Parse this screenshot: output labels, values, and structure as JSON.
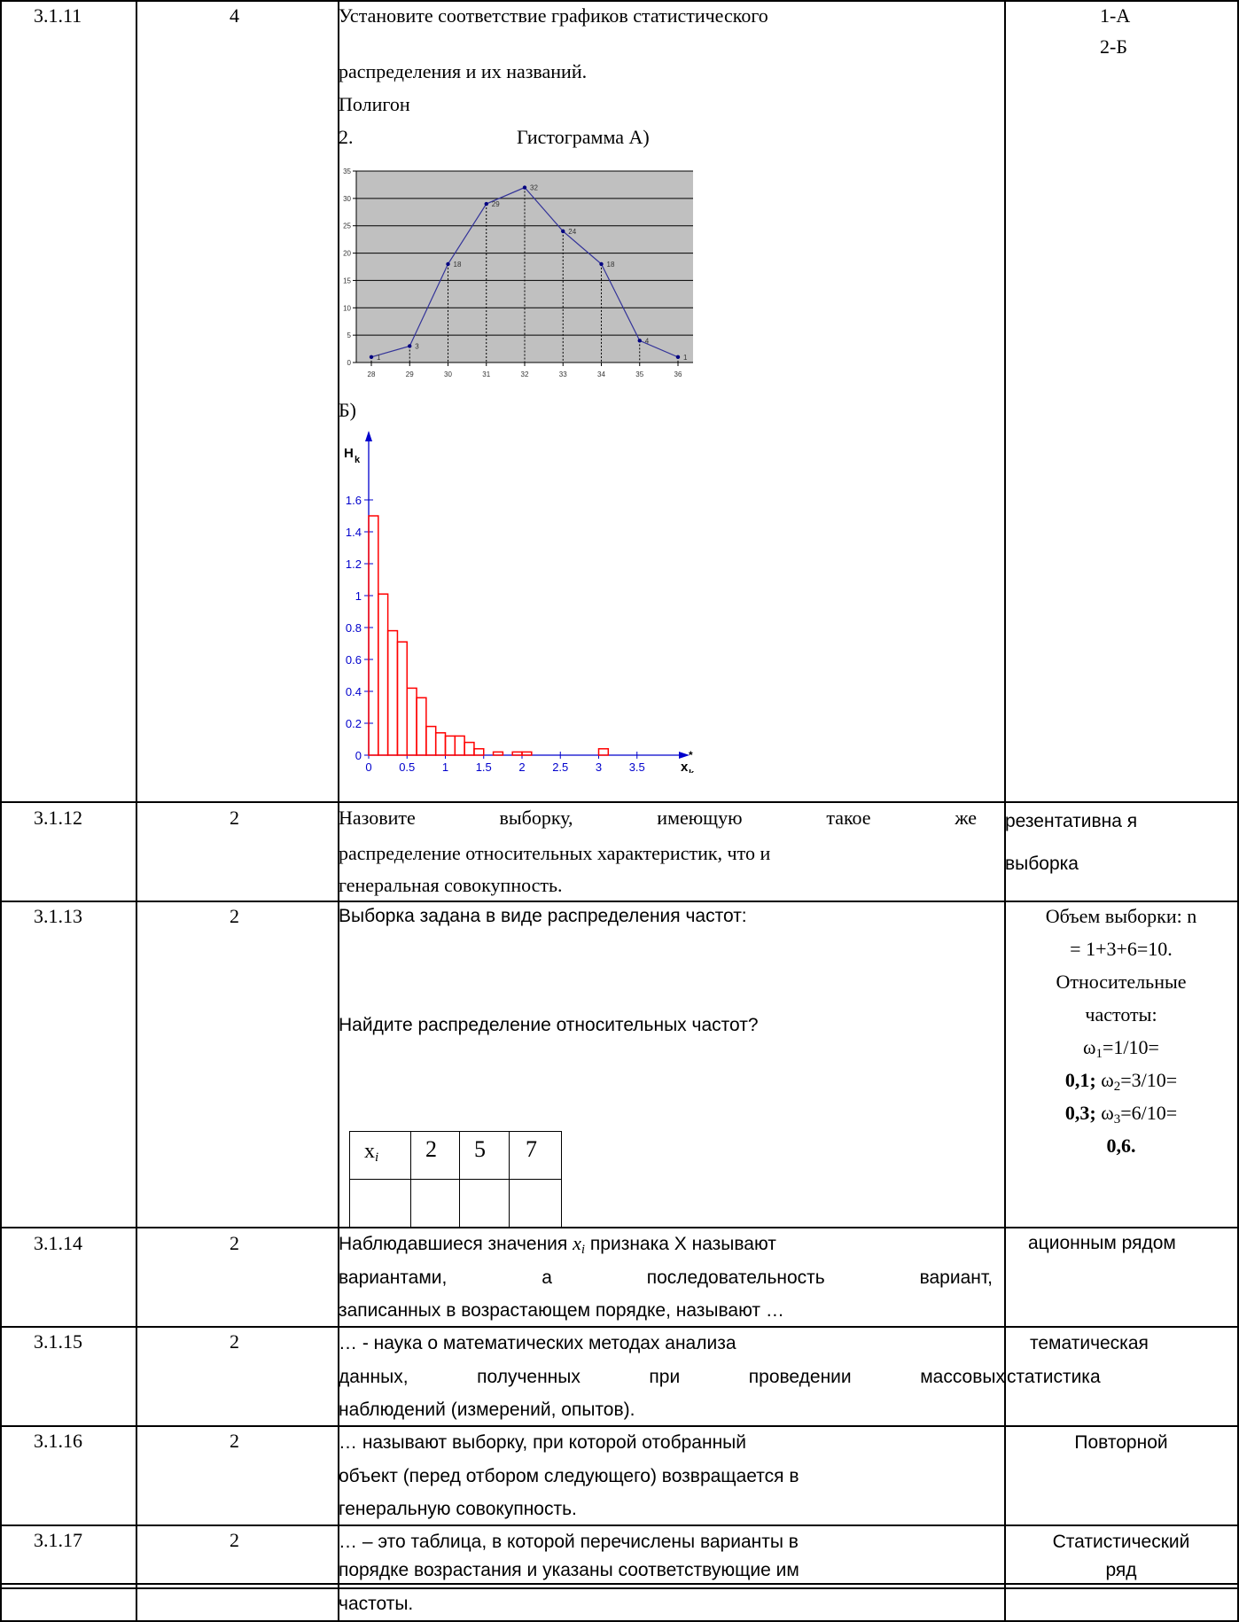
{
  "rows": [
    {
      "num": "3.1.11",
      "points": "4",
      "question": [
        "Установите соответствие графиков статистического",
        "распределения и их названий.",
        "Полигон",
        "2.",
        "Гистограмма А)"
      ],
      "answer": [
        "1-А",
        "2-Б"
      ],
      "chart_b_label": "Б)"
    },
    {
      "num": "3.1.12",
      "points": "2",
      "question": [
        "Назовите выборку, имеющую такое же",
        "распределение относительных характеристик, что и",
        "генеральная совокупность."
      ],
      "answer": [
        "резентативна я",
        "выборка"
      ]
    },
    {
      "num": "3.1.13",
      "points": "2",
      "question": [
        "Выборка задана в виде распределения частот:",
        "Найдите распределение относительных частот?"
      ],
      "freq_table": {
        "header": "x",
        "header_sub": "i",
        "values": [
          "2",
          "5",
          "7"
        ]
      },
      "answer": [
        "Объем выборки: n",
        "= 1+3+6=10.",
        "Относительные",
        "частоты:",
        "ω",
        "1",
        "=1/10=",
        "0,1;",
        "ω",
        "2",
        "=3/10=",
        "0,3;",
        "ω",
        "3",
        "=6/10=",
        "0,6."
      ]
    },
    {
      "num": "3.1.14",
      "points": "2",
      "question": [
        "Наблюдавшиеся значения",
        "x",
        "i",
        "признака X называют",
        "вариантами, а последовательность вариант,",
        "записанных в возрастающем порядке, называют …"
      ],
      "answer": [
        "ационным рядом"
      ]
    },
    {
      "num": "3.1.15",
      "points": "2",
      "question": [
        "… - наука о математических методах анализа",
        "данных, полученных при проведении массовых",
        "наблюдений (измерений, опытов)."
      ],
      "answer": [
        "тематическая",
        "статистика"
      ]
    },
    {
      "num": "3.1.16",
      "points": "2",
      "question": [
        "… называют выборку, при которой отобранный",
        "объект (перед отбором следующего) возвращается в",
        "генеральную совокупность."
      ],
      "answer": [
        "Повторной"
      ]
    },
    {
      "num": "3.1.17",
      "points": "2",
      "question": [
        "… – это таблица, в которой перечислены варианты в",
        "порядке возрастания и указаны соответствующие им",
        "частоты."
      ],
      "answer": [
        "Статистический",
        "ряд"
      ]
    }
  ],
  "chart_data": [
    {
      "type": "line",
      "x": [
        28,
        29,
        30,
        31,
        32,
        33,
        34,
        35,
        36
      ],
      "values": [
        1,
        3,
        18,
        29,
        32,
        24,
        18,
        4,
        1
      ],
      "data_labels": [
        "1",
        "3",
        "18",
        "29",
        "32",
        "24",
        "18",
        "4",
        "1"
      ],
      "ylim": [
        0,
        35
      ],
      "y_ticks": [
        "0",
        "5",
        "10",
        "15",
        "20",
        "25",
        "30",
        "35"
      ],
      "x_ticks": [
        "28",
        "29",
        "30",
        "31",
        "32",
        "33",
        "34",
        "35",
        "36"
      ],
      "grid": true,
      "colors": {
        "background": "#c0c0c0",
        "line": "#333399",
        "grid": "#000000"
      }
    },
    {
      "type": "bar",
      "ylabel": "H",
      "ylabel_sub": "k",
      "xlabel": "x",
      "xlabel_sub": "k",
      "xlabel_sup": "*",
      "bin_width": 0.125,
      "x_start": 0,
      "values": [
        1.5,
        1.01,
        0.78,
        0.71,
        0.42,
        0.36,
        0.18,
        0.14,
        0.12,
        0.12,
        0.08,
        0.04,
        0.0,
        0.02,
        0.0,
        0.02,
        0.02,
        0.0,
        0.0,
        0.0,
        0.0,
        0.0,
        0.0,
        0.0,
        0.04
      ],
      "ylim": [
        0,
        1.6
      ],
      "xlim": [
        0,
        3.75
      ],
      "y_ticks": [
        "0",
        "0.2",
        "0.4",
        "0.6",
        "0.8",
        "1",
        "1.2",
        "1.4",
        "1.6"
      ],
      "x_ticks": [
        "0",
        "0.5",
        "1",
        "1.5",
        "2",
        "2.5",
        "3",
        "3.5"
      ],
      "colors": {
        "bars": "#ff0000",
        "axes": "#0000cc"
      }
    }
  ]
}
